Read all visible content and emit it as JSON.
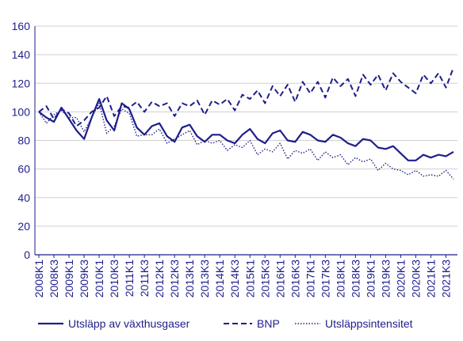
{
  "chart_data": {
    "type": "line",
    "title": "",
    "xlabel": "",
    "ylabel": "",
    "ylim": [
      0,
      160
    ],
    "yticks": [
      0,
      20,
      40,
      60,
      80,
      100,
      120,
      140,
      160
    ],
    "grid": "horizontal",
    "legend_position": "bottom",
    "x": [
      "2008K1",
      "2008K2",
      "2008K3",
      "2008K4",
      "2009K1",
      "2009K2",
      "2009K3",
      "2009K4",
      "2010K1",
      "2010K2",
      "2010K3",
      "2010K4",
      "2011K1",
      "2011K2",
      "2011K3",
      "2011K4",
      "2012K1",
      "2012K2",
      "2012K3",
      "2012K4",
      "2013K1",
      "2013K2",
      "2013K3",
      "2013K4",
      "2014K1",
      "2014K2",
      "2014K3",
      "2014K4",
      "2015K1",
      "2015K2",
      "2015K3",
      "2015K4",
      "2016K1",
      "2016K2",
      "2016K3",
      "2016K4",
      "2017K1",
      "2017K2",
      "2017K3",
      "2017K4",
      "2018K1",
      "2018K2",
      "2018K3",
      "2018K4",
      "2019K1",
      "2019K2",
      "2019K3",
      "2019K4",
      "2020K1",
      "2020K2",
      "2020K3",
      "2020K4",
      "2021K1",
      "2021K2",
      "2021K3",
      "2021K4"
    ],
    "xtick_labels": [
      "2008K1",
      "2008K3",
      "2009K1",
      "2009K3",
      "2010K1",
      "2010K3",
      "2011K1",
      "2011K3",
      "2012K1",
      "2012K3",
      "2013K1",
      "2013K3",
      "2014K1",
      "2014K3",
      "2015K1",
      "2015K3",
      "2016K1",
      "2016K3",
      "2017K1",
      "2017K3",
      "2018K1",
      "2018K3",
      "2019K1",
      "2019K3",
      "2020K1",
      "2020K3",
      "2021K1",
      "2021K3"
    ],
    "series": [
      {
        "name": "Utsläpp av växthusgaser",
        "color": "#1e1e8c",
        "style": "solid",
        "values": [
          100,
          96,
          93,
          103,
          95,
          87,
          81,
          96,
          109,
          94,
          87,
          106,
          102,
          89,
          84,
          90,
          92,
          83,
          79,
          89,
          91,
          83,
          79,
          84,
          84,
          80,
          78,
          84,
          88,
          81,
          78,
          85,
          87,
          80,
          79,
          86,
          84,
          80,
          79,
          84,
          82,
          78,
          76,
          81,
          80,
          75,
          74,
          76,
          71,
          66,
          66,
          70,
          68,
          70,
          69,
          72
        ]
      },
      {
        "name": "BNP",
        "color": "#1e1e8c",
        "style": "dashed",
        "values": [
          100,
          104,
          95,
          102,
          99,
          90,
          94,
          100,
          103,
          111,
          97,
          104,
          103,
          107,
          100,
          107,
          104,
          106,
          97,
          106,
          104,
          108,
          98,
          108,
          105,
          109,
          101,
          112,
          109,
          115,
          106,
          118,
          111,
          119,
          107,
          121,
          113,
          121,
          110,
          124,
          118,
          123,
          111,
          126,
          119,
          126,
          115,
          127,
          121,
          117,
          113,
          126,
          120,
          127,
          117,
          131
        ]
      },
      {
        "name": "Utsläppsintensitet",
        "color": "#1e1e8c",
        "style": "dotted",
        "values": [
          100,
          92,
          98,
          101,
          96,
          96,
          86,
          96,
          106,
          85,
          90,
          102,
          99,
          83,
          84,
          84,
          88,
          78,
          81,
          84,
          87,
          77,
          80,
          78,
          80,
          73,
          77,
          75,
          80,
          70,
          74,
          72,
          78,
          67,
          73,
          71,
          74,
          66,
          72,
          68,
          70,
          63,
          68,
          65,
          67,
          59,
          64,
          60,
          59,
          56,
          59,
          55,
          56,
          55,
          59,
          53
        ]
      }
    ]
  }
}
